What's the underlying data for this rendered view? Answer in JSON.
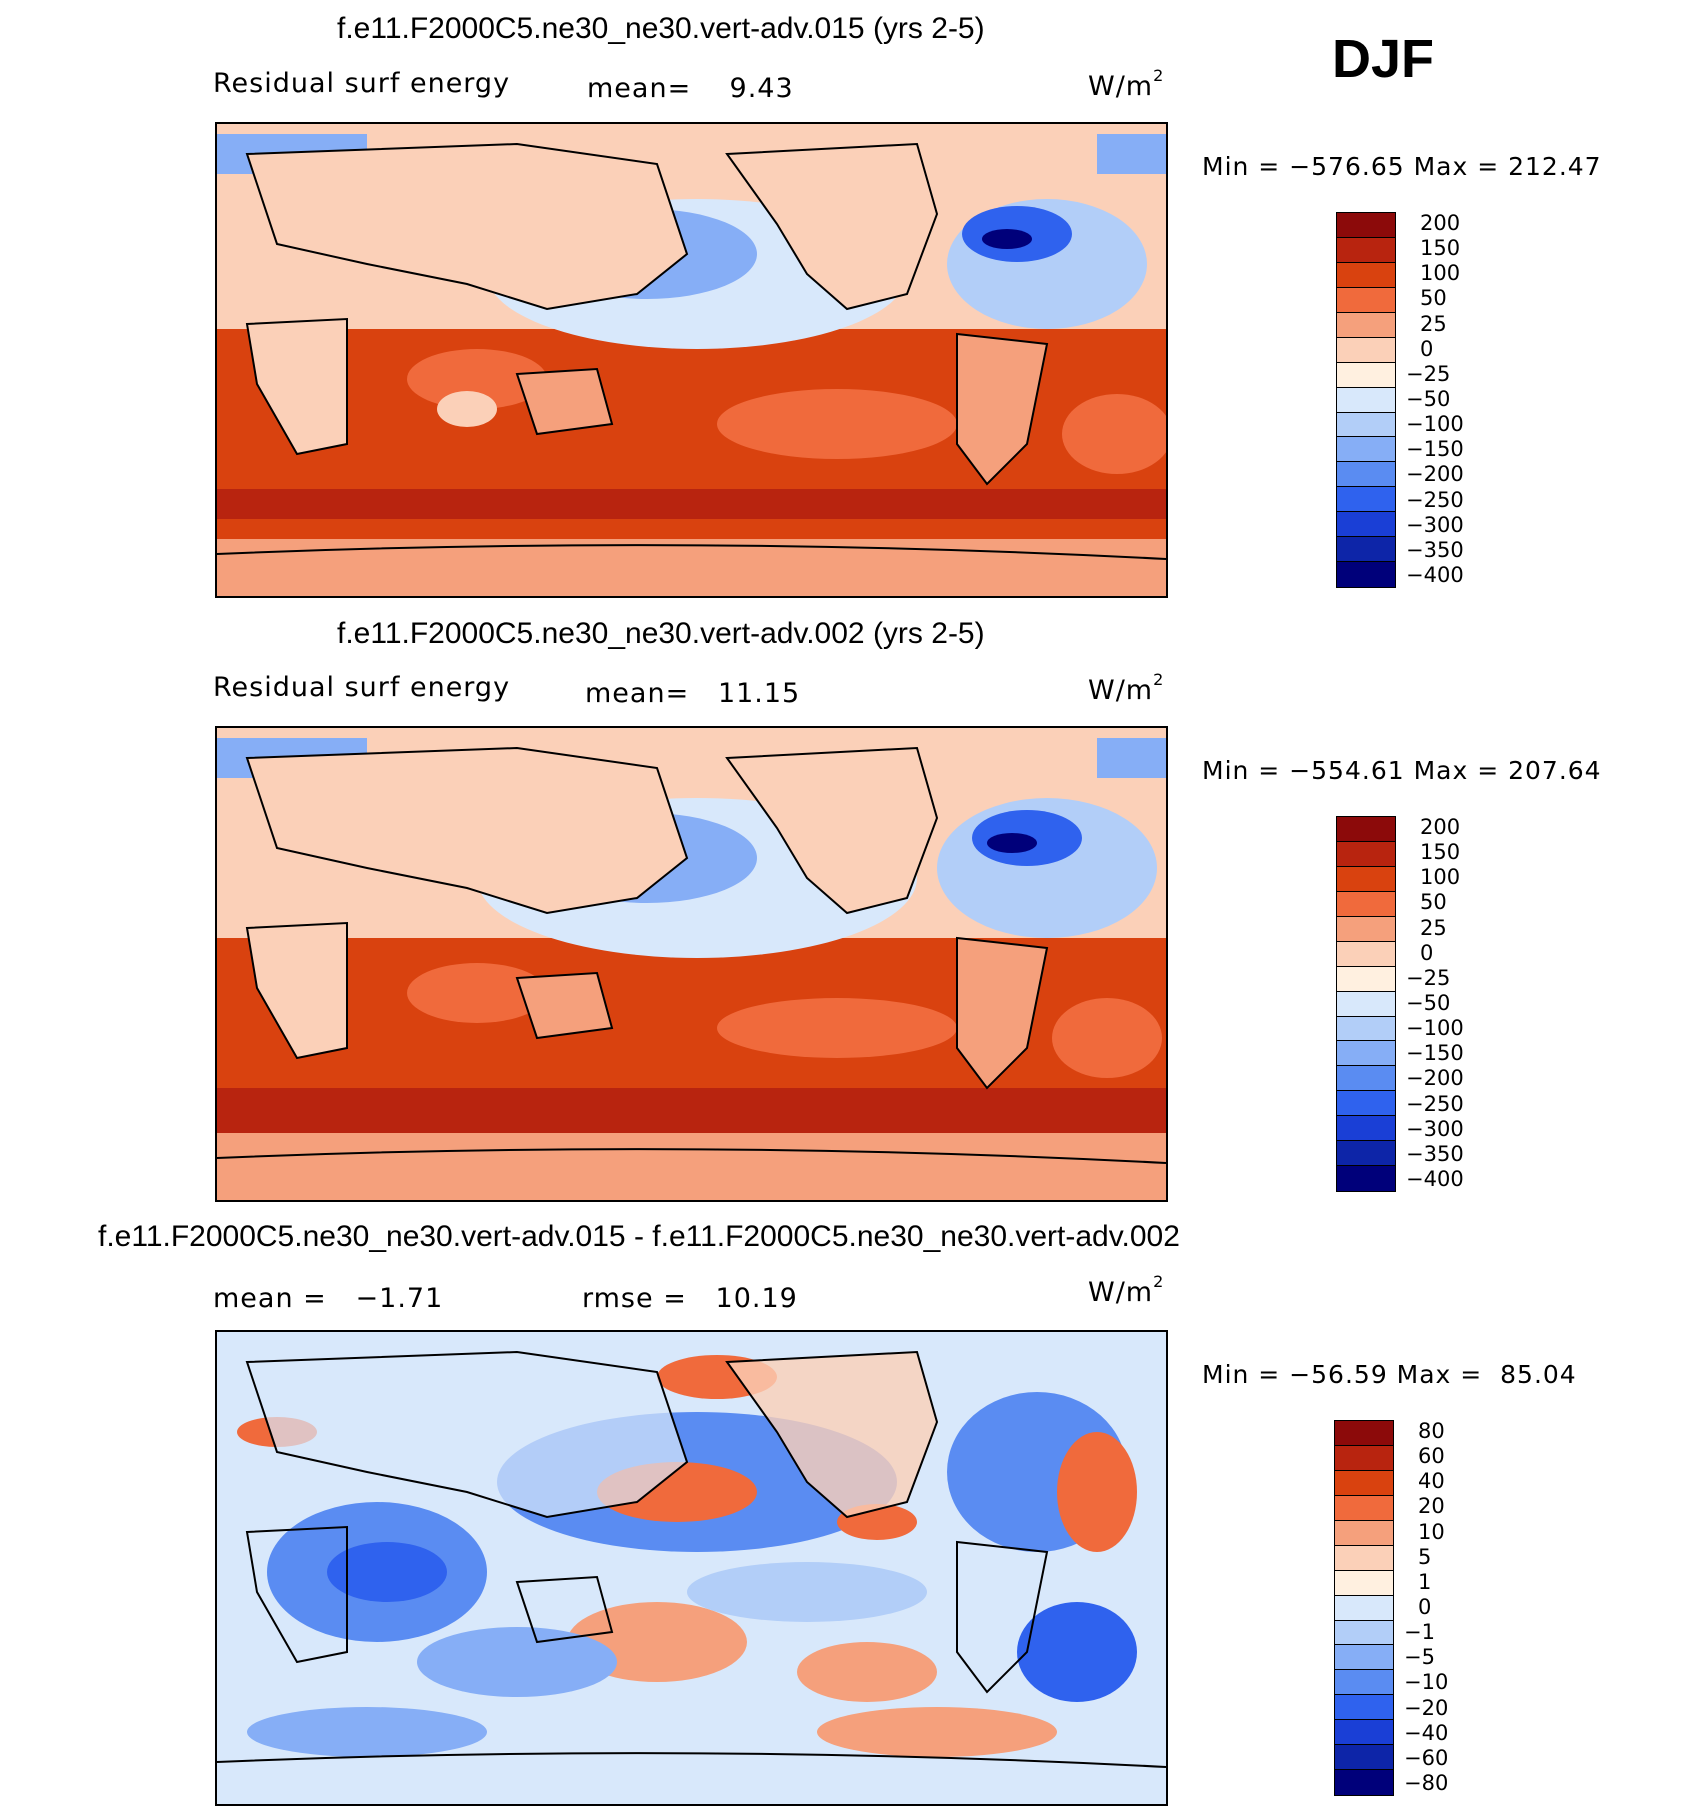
{
  "season": "DJF",
  "panels": [
    {
      "id": "p1",
      "title": "f.e11.F2000C5.ne30_ne30.vert-adv.015 (yrs 2-5)",
      "left_label": "Residual surf energy",
      "center_label": "mean=    9.43",
      "units": "W/m",
      "units_sup": "2",
      "minmax": "Min = −576.65 Max = 212.47",
      "colorbar": {
        "colors": [
          "#8c0a0a",
          "#b8240f",
          "#d9420f",
          "#f06a3c",
          "#f5a07c",
          "#fbd0b8",
          "#fff0e0",
          "#d8e8fb",
          "#b2cef8",
          "#86aef6",
          "#5a8cf2",
          "#2f62ee",
          "#1a3fd6",
          "#0d25a8",
          "#00007a"
        ],
        "labels": [
          "200",
          "150",
          "100",
          "50",
          "25",
          "0",
          "−25",
          "−50",
          "−100",
          "−150",
          "−200",
          "−250",
          "−300",
          "−350",
          "−400"
        ]
      }
    },
    {
      "id": "p2",
      "title": "f.e11.F2000C5.ne30_ne30.vert-adv.002 (yrs 2-5)",
      "left_label": "Residual surf energy",
      "center_label": "mean=   11.15",
      "units": "W/m",
      "units_sup": "2",
      "minmax": "Min = −554.61 Max = 207.64",
      "colorbar": {
        "colors": [
          "#8c0a0a",
          "#b8240f",
          "#d9420f",
          "#f06a3c",
          "#f5a07c",
          "#fbd0b8",
          "#fff0e0",
          "#d8e8fb",
          "#b2cef8",
          "#86aef6",
          "#5a8cf2",
          "#2f62ee",
          "#1a3fd6",
          "#0d25a8",
          "#00007a"
        ],
        "labels": [
          "200",
          "150",
          "100",
          "50",
          "25",
          "0",
          "−25",
          "−50",
          "−100",
          "−150",
          "−200",
          "−250",
          "−300",
          "−350",
          "−400"
        ]
      }
    },
    {
      "id": "p3",
      "title": "f.e11.F2000C5.ne30_ne30.vert-adv.015 - f.e11.F2000C5.ne30_ne30.vert-adv.002",
      "left_label": "mean =   −1.71",
      "center_label": "rmse =   10.19",
      "units": "W/m",
      "units_sup": "2",
      "minmax": "Min = −56.59 Max =  85.04",
      "colorbar": {
        "colors": [
          "#8c0a0a",
          "#b8240f",
          "#d9420f",
          "#f06a3c",
          "#f5a07c",
          "#fbd0b8",
          "#fff0e0",
          "#d8e8fb",
          "#b2cef8",
          "#86aef6",
          "#5a8cf2",
          "#2f62ee",
          "#1a3fd6",
          "#0d25a8",
          "#00007a"
        ],
        "labels": [
          "80",
          "60",
          "40",
          "20",
          "10",
          "5",
          "1",
          "0",
          "−1",
          "−5",
          "−10",
          "−20",
          "−40",
          "−60",
          "−80"
        ]
      }
    }
  ]
}
